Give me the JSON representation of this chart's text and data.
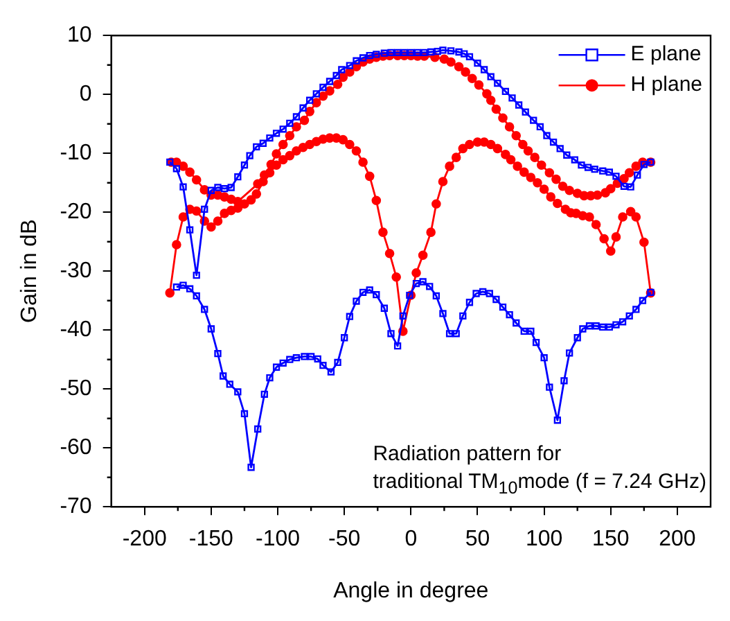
{
  "chart_data": {
    "type": "line",
    "xlabel": "Angle in degree",
    "ylabel": "Gain in dB",
    "xlim": [
      -225,
      225
    ],
    "xticks": [
      -200,
      -150,
      -100,
      -50,
      0,
      50,
      100,
      150,
      200
    ],
    "ylim": [
      -70,
      10
    ],
    "yticks": [
      -70,
      -60,
      -50,
      -40,
      -30,
      -20,
      -10,
      0,
      10
    ],
    "grid": false,
    "legend": "top right",
    "annotations": [
      "Radiation pattern for",
      "traditional TM$_{10}$mode (f = 7.24 GHz)"
    ],
    "series": [
      {
        "name": "E plane",
        "color": "#0000ff",
        "marker": "square",
        "x": [
          -181,
          -176,
          -171,
          -166,
          -161,
          -155,
          -150,
          -145,
          -140,
          -135,
          -130,
          -125,
          -121,
          -116,
          -111,
          -106,
          -101,
          -96,
          -91,
          -86,
          -81,
          -76,
          -71,
          -66,
          -61,
          -56,
          -52,
          -46,
          -41,
          -36,
          -31,
          -26,
          -20,
          -15,
          -10,
          -5,
          0,
          5,
          10,
          15,
          20,
          24,
          30,
          36,
          40,
          44,
          50,
          55,
          60,
          65,
          71,
          76,
          81,
          86,
          92,
          97,
          102,
          107,
          112,
          117,
          123,
          128,
          133,
          138,
          144,
          149,
          154,
          160,
          165,
          170,
          175,
          180
        ],
        "values": [
          -11.5,
          -12.6,
          -15.7,
          -23,
          -30.7,
          -19.5,
          -16.3,
          -15.8,
          -16,
          -15.8,
          -14,
          -12,
          -10.4,
          -8.9,
          -8.3,
          -7.4,
          -6.6,
          -5.9,
          -4.9,
          -3.8,
          -2.3,
          -1,
          0.1,
          1.2,
          2.2,
          3.2,
          4.2,
          4.9,
          5.7,
          6.2,
          6.6,
          6.8,
          7,
          7.1,
          7.1,
          7.1,
          7.1,
          7.1,
          7.1,
          7.2,
          7.3,
          7.5,
          7.4,
          7.2,
          6.9,
          6.4,
          5.3,
          4.2,
          3,
          1.9,
          0.5,
          -0.6,
          -1.8,
          -3,
          -4.4,
          -5.5,
          -7,
          -8.1,
          -9.2,
          -10.3,
          -11.1,
          -12,
          -12.4,
          -12.7,
          -13,
          -13.2,
          -13.9,
          -15.6,
          -15.7,
          -13.7,
          -11.9,
          -11.5
        ]
      },
      {
        "color": "#0000ff",
        "marker": "square",
        "x": [
          -176,
          -171,
          -166,
          -161,
          -155,
          -150,
          -145,
          -141,
          -136,
          -130,
          -125,
          -120,
          -115,
          -110,
          -106,
          -101,
          -96,
          -91,
          -86,
          -80,
          -75,
          -70,
          -66,
          -60,
          -55,
          -50,
          -46,
          -41,
          -36,
          -31,
          -26,
          -20,
          -15,
          -10,
          -6,
          -1,
          4,
          9,
          14,
          19,
          24,
          29,
          34,
          39,
          44,
          49,
          54,
          59,
          64,
          69,
          74,
          79,
          85,
          90,
          94,
          100,
          104,
          110,
          115,
          119,
          125,
          129,
          134,
          139,
          144,
          149,
          154,
          159,
          164,
          169,
          174,
          180
        ],
        "values": [
          -32.7,
          -32.4,
          -33,
          -34.2,
          -36.5,
          -39.8,
          -44,
          -47.8,
          -49.2,
          -50.5,
          -54.2,
          -63.3,
          -56.8,
          -50.9,
          -48.1,
          -46.3,
          -45.6,
          -45,
          -44.7,
          -44.5,
          -44.5,
          -44.9,
          -46,
          -47.1,
          -45.5,
          -41.3,
          -37.7,
          -35.1,
          -33.6,
          -33.2,
          -34,
          -36.3,
          -40.6,
          -42.7,
          -37.6,
          -34.1,
          -32.1,
          -31.8,
          -32.6,
          -34.2,
          -37.2,
          -40.6,
          -40.6,
          -37.6,
          -35.3,
          -33.8,
          -33.5,
          -33.8,
          -34.8,
          -36.1,
          -37.4,
          -38.8,
          -40.2,
          -40.2,
          -42.1,
          -44.7,
          -49.7,
          -55.3,
          -48.6,
          -43.9,
          -41.3,
          -39.8,
          -39.3,
          -39.3,
          -39.5,
          -39.5,
          -39.1,
          -38.6,
          -37.6,
          -36.5,
          -35,
          -33.6
        ]
      },
      {
        "name": "H plane",
        "color": "#ff0000",
        "marker": "circle",
        "x": [
          -180,
          -176,
          -171,
          -166,
          -161,
          -155,
          -150,
          -145,
          -140,
          -135,
          -130,
          -115,
          -110,
          -105,
          -101,
          -96,
          -91,
          -86,
          -80,
          -76,
          -71,
          -66,
          -61,
          -55,
          -51,
          -46,
          -41,
          -36,
          -31,
          -26,
          -21,
          -16,
          -10,
          -5,
          0,
          5,
          10,
          18,
          25,
          30,
          36,
          41,
          46,
          51,
          57,
          60,
          64,
          69,
          74,
          79,
          84,
          88,
          93,
          98,
          104,
          109,
          114,
          119,
          125,
          130,
          135,
          140,
          146,
          150,
          155,
          160,
          164,
          169,
          174,
          180
        ],
        "values": [
          -11.5,
          -11.5,
          -12.2,
          -13.2,
          -14.5,
          -16.2,
          -17.1,
          -17.1,
          -17.4,
          -17.8,
          -18.2,
          -15.2,
          -13.7,
          -11.9,
          -10.1,
          -8.5,
          -7,
          -5.5,
          -4.4,
          -2.9,
          -1.4,
          -0.3,
          0.6,
          1.7,
          2.9,
          3.8,
          4.7,
          5.5,
          6,
          6.3,
          6.5,
          6.6,
          6.6,
          6.6,
          6.6,
          6.5,
          6.5,
          6.3,
          6,
          5.5,
          4.7,
          3.8,
          2.7,
          1.6,
          0.1,
          -1,
          -2.5,
          -4,
          -5.5,
          -7,
          -8.5,
          -9.6,
          -10.7,
          -12,
          -13.3,
          -14.4,
          -15.6,
          -16.3,
          -16.8,
          -17.2,
          -17.2,
          -17.1,
          -16.7,
          -16,
          -15.1,
          -14.3,
          -13.3,
          -12.2,
          -11.5,
          -11.5
        ]
      },
      {
        "color": "#ff0000",
        "marker": "circle",
        "x": [
          -181,
          -176,
          -171,
          -166,
          -161,
          -155,
          -150,
          -145,
          -140,
          -135,
          -130,
          -125,
          -120,
          -116,
          -111,
          -106,
          -101,
          -96,
          -91,
          -86,
          -81,
          -76,
          -71,
          -66,
          -61,
          -56,
          -51,
          -46,
          -41,
          -36,
          -31,
          -26,
          -21,
          -16,
          -11,
          -6,
          0,
          4,
          9,
          15,
          19,
          24,
          29,
          34,
          39,
          44,
          50,
          55,
          60,
          65,
          71,
          75,
          80,
          85,
          90,
          95,
          100,
          105,
          110,
          116,
          120,
          124,
          129,
          134,
          139,
          145,
          150,
          154,
          159,
          165,
          169,
          175,
          180
        ],
        "values": [
          -33.7,
          -25.5,
          -20.8,
          -19.5,
          -19.8,
          -21.5,
          -22.5,
          -21.5,
          -20.2,
          -19.7,
          -19.3,
          -18.6,
          -17.9,
          -16.9,
          -14.8,
          -13.3,
          -12,
          -11.1,
          -10.4,
          -9.6,
          -9,
          -8.5,
          -8,
          -7.6,
          -7.4,
          -7.4,
          -7.7,
          -8.5,
          -9.6,
          -11.5,
          -13.9,
          -18,
          -23.4,
          -27,
          -31,
          -40.2,
          -34.1,
          -30.3,
          -27.3,
          -23.4,
          -18.6,
          -14.8,
          -12.2,
          -10.7,
          -9.2,
          -8.5,
          -8.1,
          -8.1,
          -8.5,
          -9.2,
          -10.2,
          -11.1,
          -12.2,
          -13.2,
          -14.1,
          -15,
          -16.1,
          -17.4,
          -18.5,
          -19.5,
          -20.1,
          -20.2,
          -20.6,
          -20.8,
          -22.1,
          -24.5,
          -26.6,
          -24.2,
          -20.8,
          -19.9,
          -20.8,
          -25.1,
          -33.7
        ]
      }
    ]
  }
}
